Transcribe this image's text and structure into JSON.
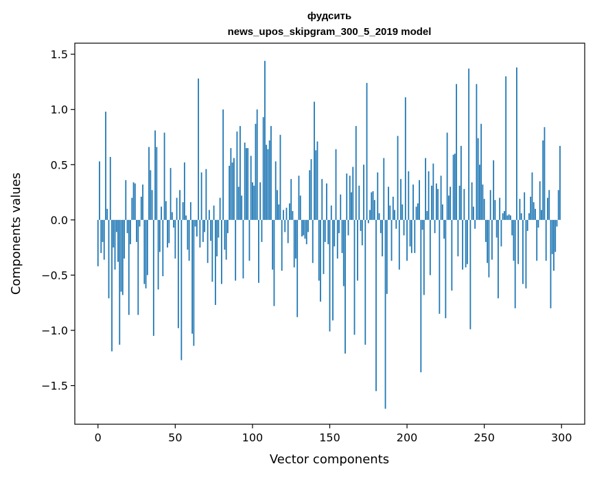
{
  "chart_data": {
    "type": "bar",
    "title_line1": "фудсить",
    "title_line2": "news_upos_skipgram_300_5_2019 model",
    "xlabel": "Vector components",
    "ylabel": "Components values",
    "xlim": [
      -15,
      315
    ],
    "ylim": [
      -1.85,
      1.6
    ],
    "xticks": [
      0,
      50,
      100,
      150,
      200,
      250,
      300
    ],
    "xtick_labels": [
      "0",
      "50",
      "100",
      "150",
      "200",
      "250",
      "300"
    ],
    "yticks": [
      -1.5,
      -1.0,
      -0.5,
      0.0,
      0.5,
      1.0,
      1.5
    ],
    "ytick_labels": [
      "−1.5",
      "−1.0",
      "−0.5",
      "0.0",
      "0.5",
      "1.0",
      "1.5"
    ],
    "bar_color": "#1f77b4",
    "grid": false,
    "values": [
      -0.42,
      0.53,
      -0.3,
      -0.2,
      -0.36,
      0.98,
      0.1,
      -0.71,
      0.57,
      -1.19,
      -0.25,
      -0.45,
      -0.11,
      -0.38,
      -1.13,
      -0.65,
      -0.68,
      -0.35,
      0.36,
      -0.12,
      -0.86,
      -0.22,
      0.2,
      0.34,
      0.33,
      -0.2,
      -0.86,
      -0.06,
      0.21,
      0.32,
      -0.58,
      -0.62,
      -0.5,
      0.66,
      0.45,
      0.27,
      -1.05,
      0.81,
      0.66,
      -0.63,
      -0.29,
      0.12,
      -0.51,
      0.79,
      0.17,
      -0.25,
      -0.21,
      0.47,
      0.07,
      -0.07,
      -0.35,
      0.2,
      -0.98,
      0.27,
      -1.27,
      0.16,
      0.52,
      0.04,
      -0.27,
      -0.37,
      0.16,
      -1.03,
      -1.14,
      -0.06,
      -0.15,
      1.28,
      -0.25,
      0.43,
      -0.2,
      -0.11,
      0.46,
      -0.39,
      0.09,
      -0.19,
      -0.56,
      0.13,
      -0.77,
      -0.33,
      -0.16,
      0.2,
      -0.58,
      1.0,
      -0.27,
      -0.36,
      -0.12,
      0.49,
      0.65,
      0.52,
      0.56,
      -0.55,
      0.8,
      0.3,
      0.85,
      0.22,
      -0.53,
      0.7,
      0.65,
      0.65,
      -0.37,
      0.58,
      0.34,
      0.31,
      0.87,
      1.0,
      -0.57,
      0.34,
      -0.2,
      0.93,
      1.44,
      0.68,
      0.64,
      0.72,
      0.85,
      -0.45,
      -0.78,
      0.53,
      0.27,
      0.14,
      0.77,
      -0.46,
      0.09,
      -0.11,
      0.11,
      -0.21,
      0.15,
      0.37,
      0.08,
      -0.43,
      -0.35,
      -0.88,
      0.4,
      0.22,
      -0.15,
      -0.14,
      -0.17,
      -0.22,
      -0.11,
      0.45,
      0.55,
      -0.39,
      1.07,
      0.63,
      0.71,
      -0.55,
      -0.74,
      0.37,
      -0.49,
      -0.2,
      0.33,
      -0.22,
      -1.01,
      0.13,
      -0.91,
      -0.24,
      0.64,
      -0.35,
      -0.12,
      0.23,
      -0.3,
      -0.6,
      -1.21,
      0.42,
      -0.14,
      0.4,
      0.25,
      0.48,
      -1.04,
      0.85,
      -0.55,
      0.31,
      -0.1,
      -0.23,
      0.5,
      -1.13,
      1.24,
      -0.03,
      0.09,
      0.25,
      0.26,
      0.18,
      -1.55,
      0.43,
      0.06,
      -0.12,
      -0.33,
      0.56,
      -1.71,
      -0.67,
      0.3,
      0.13,
      -0.37,
      0.21,
      0.09,
      -0.08,
      0.76,
      -0.45,
      0.37,
      0.14,
      -0.14,
      1.11,
      -0.37,
      0.44,
      -0.24,
      -0.3,
      0.32,
      -0.3,
      0.12,
      0.15,
      0.36,
      -1.38,
      -0.09,
      -0.68,
      0.56,
      0.08,
      0.44,
      -0.5,
      0.31,
      0.51,
      -0.12,
      0.33,
      0.28,
      -0.85,
      0.4,
      0.14,
      -0.17,
      -0.89,
      0.79,
      0.22,
      0.3,
      -0.64,
      0.59,
      0.6,
      1.23,
      -0.33,
      0.31,
      0.67,
      -0.45,
      0.28,
      -0.43,
      -0.4,
      1.37,
      -0.99,
      0.34,
      0.12,
      -0.08,
      1.23,
      0.74,
      0.5,
      0.87,
      0.32,
      0.19,
      -0.2,
      -0.39,
      -0.52,
      0.27,
      -0.36,
      0.54,
      0.18,
      -0.16,
      -0.71,
      0.2,
      -0.24,
      0.06,
      0.08,
      1.3,
      0.04,
      0.05,
      0.04,
      -0.14,
      -0.37,
      -0.8,
      1.38,
      -0.4,
      0.19,
      0.06,
      -0.58,
      0.25,
      -0.62,
      -0.1,
      0.06,
      0.21,
      0.43,
      0.16,
      0.1,
      -0.37,
      -0.07,
      0.35,
      0.09,
      0.72,
      0.84,
      -0.37,
      0.2,
      0.27,
      -0.8,
      -0.31,
      -0.46,
      -0.29,
      -0.06,
      0.27,
      0.67
    ]
  }
}
